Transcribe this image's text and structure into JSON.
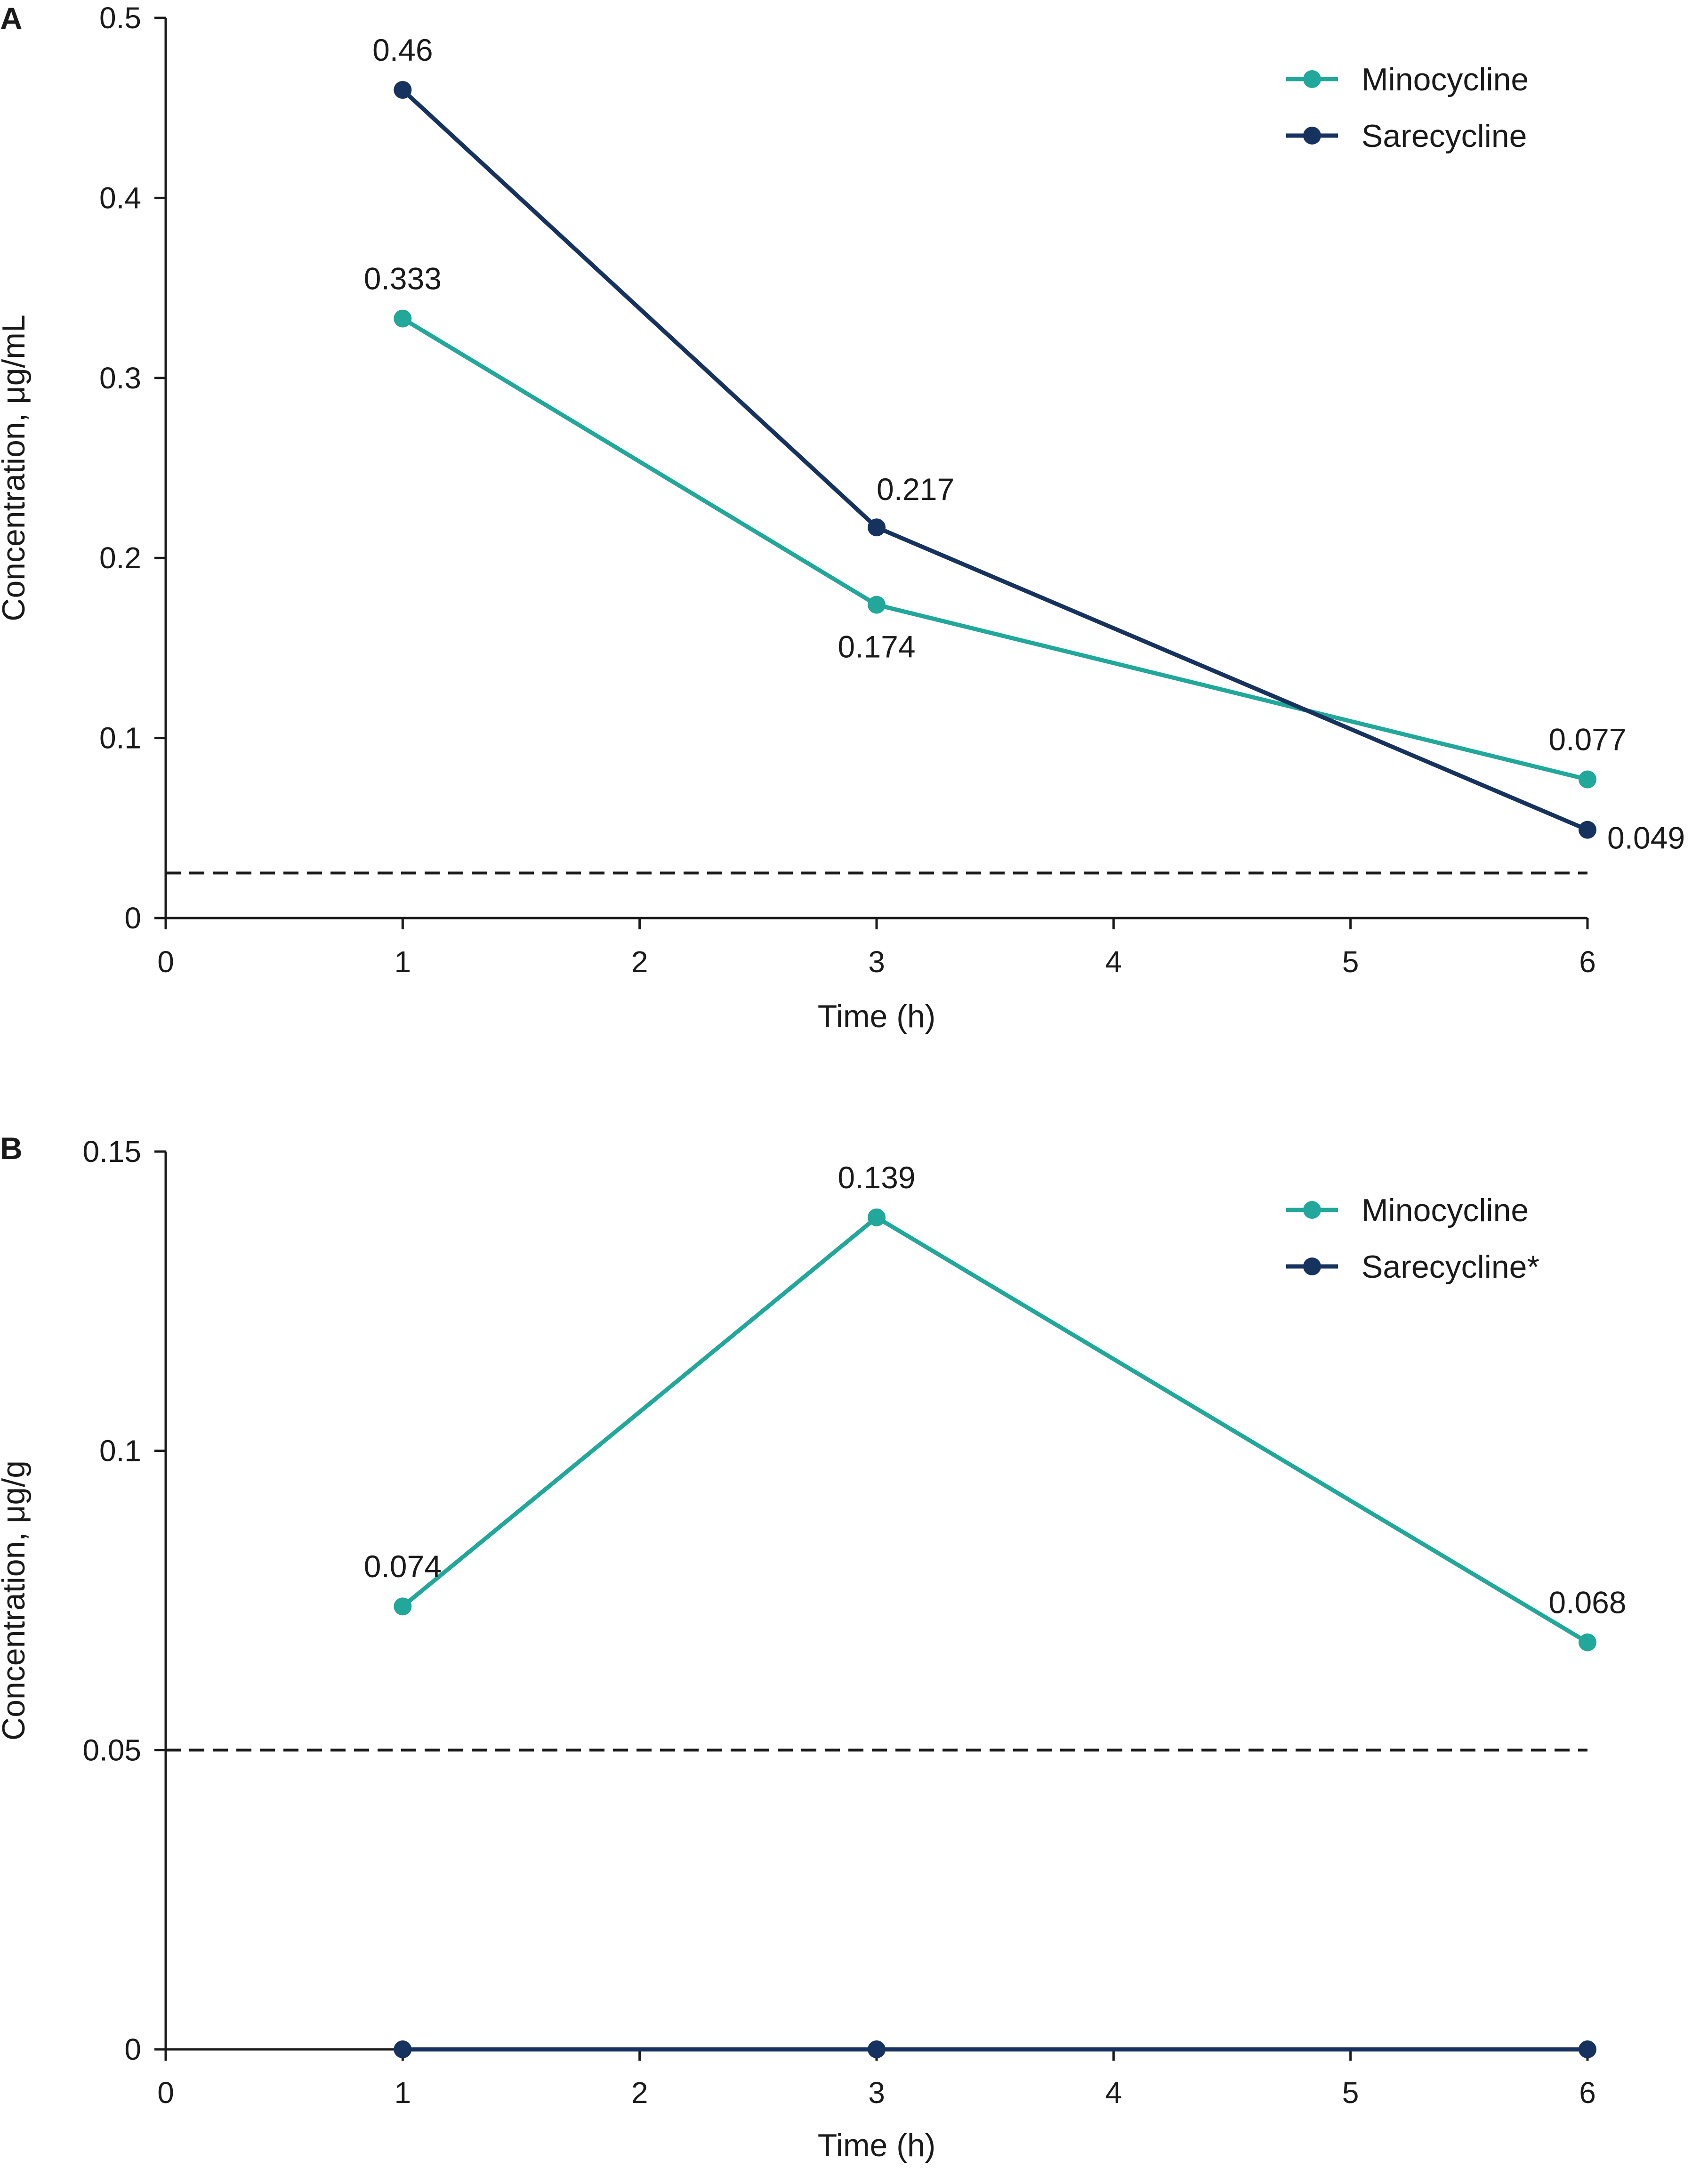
{
  "chart_data": [
    {
      "panel_label": "A",
      "type": "line",
      "xlabel": "Time (h)",
      "ylabel": "Concentration, μg/mL",
      "xlim": [
        0,
        6
      ],
      "ylim": [
        0,
        0.5
      ],
      "x_ticks": [
        0,
        1,
        2,
        3,
        4,
        5,
        6
      ],
      "x_tick_labels": [
        "0",
        "1",
        "2",
        "3",
        "4",
        "5",
        "6"
      ],
      "y_ticks": [
        0,
        0.1,
        0.2,
        0.3,
        0.4,
        0.5
      ],
      "y_tick_labels": [
        "0",
        "0.1",
        "0.2",
        "0.3",
        "0.4",
        "0.5"
      ],
      "reference_line": {
        "y": 0.025,
        "style": "dashed"
      },
      "legend_position": "top-right",
      "series": [
        {
          "name": "Minocycline",
          "color": "#22a89a",
          "x": [
            1,
            3,
            6
          ],
          "values": [
            0.333,
            0.174,
            0.077
          ],
          "labels": [
            "0.333",
            "0.174",
            "0.077"
          ],
          "label_positions": [
            "above",
            "below",
            "above"
          ]
        },
        {
          "name": "Sarecycline",
          "color": "#16325e",
          "x": [
            1,
            3,
            6
          ],
          "values": [
            0.46,
            0.217,
            0.049
          ],
          "labels": [
            "0.46",
            "0.217",
            "0.049"
          ],
          "label_positions": [
            "above",
            "above-right",
            "right"
          ]
        }
      ]
    },
    {
      "panel_label": "B",
      "type": "line",
      "xlabel": "Time (h)",
      "ylabel": "Concentration, μg/g",
      "xlim": [
        0,
        6
      ],
      "ylim": [
        0,
        0.15
      ],
      "x_ticks": [
        0,
        1,
        2,
        3,
        4,
        5,
        6
      ],
      "x_tick_labels": [
        "0",
        "1",
        "2",
        "3",
        "4",
        "5",
        "6"
      ],
      "y_ticks": [
        0,
        0.05,
        0.1,
        0.15
      ],
      "y_tick_labels": [
        "0",
        "0.05",
        "0.1",
        "0.15"
      ],
      "reference_line": {
        "y": 0.05,
        "style": "dashed"
      },
      "legend_position": "top-right",
      "series": [
        {
          "name": "Minocycline",
          "color": "#22a89a",
          "x": [
            1,
            3,
            6
          ],
          "values": [
            0.074,
            0.139,
            0.068
          ],
          "labels": [
            "0.074",
            "0.139",
            "0.068"
          ],
          "label_positions": [
            "above",
            "above",
            "above"
          ]
        },
        {
          "name": "Sarecycline*",
          "color": "#16325e",
          "x": [
            1,
            3,
            6
          ],
          "values": [
            0,
            0,
            0
          ],
          "labels": [
            "",
            "",
            ""
          ],
          "label_positions": [
            "none",
            "none",
            "none"
          ]
        }
      ]
    }
  ]
}
